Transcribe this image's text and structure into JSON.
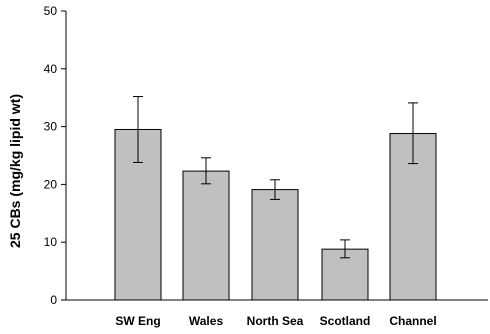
{
  "chart_data": {
    "type": "bar",
    "categories": [
      "SW Eng",
      "Wales",
      "North Sea",
      "Scotland",
      "Channel"
    ],
    "values": [
      29.5,
      22.3,
      19.1,
      8.8,
      28.8
    ],
    "error_low": [
      23.8,
      20.1,
      17.4,
      7.3,
      23.6
    ],
    "error_high": [
      35.2,
      24.6,
      20.8,
      10.4,
      34.1
    ],
    "title": "",
    "xlabel": "",
    "ylabel": "25 CBs (mg/kg lipid wt)",
    "ylim": [
      0,
      50
    ],
    "yticks": [
      0,
      10,
      20,
      30,
      40,
      50
    ],
    "grid": false,
    "bar_color": "#c0c0c0",
    "bar_edge_color": "#000000"
  }
}
